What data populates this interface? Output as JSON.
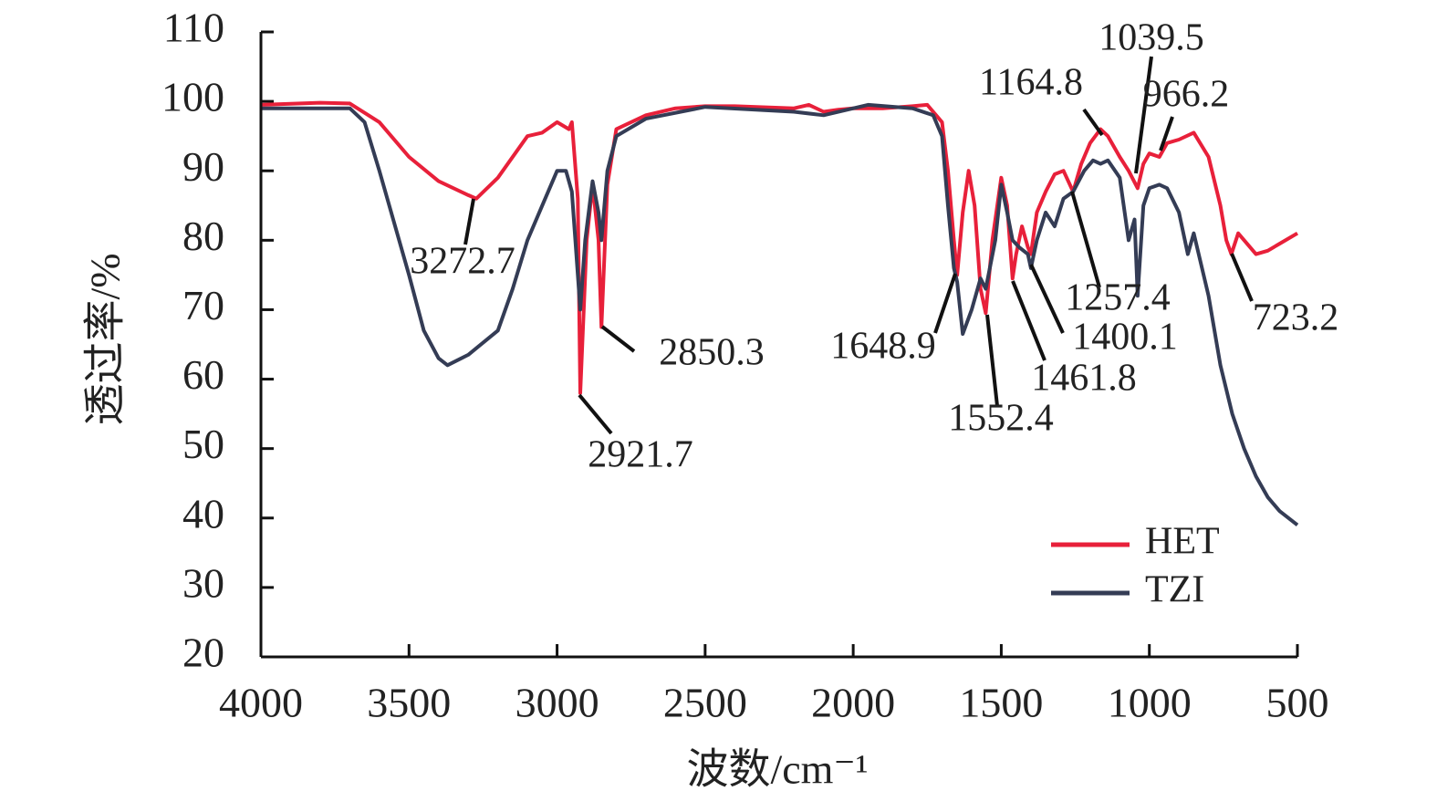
{
  "chart_data": {
    "type": "line",
    "xlabel": "波数/cm⁻¹",
    "ylabel": "透过率/%",
    "xlim": [
      4000,
      500
    ],
    "xticks": [
      4000,
      3500,
      3000,
      2500,
      2000,
      1500,
      1000,
      500
    ],
    "ylim": [
      20,
      110
    ],
    "yticks": [
      20,
      30,
      40,
      50,
      60,
      70,
      80,
      90,
      100,
      110
    ],
    "legend": "lower right",
    "series": [
      {
        "name": "HET",
        "color": "#e8203a",
        "x": [
          4000,
          3800,
          3700,
          3600,
          3500,
          3400,
          3300,
          3272.7,
          3200,
          3100,
          3050,
          3000,
          2960,
          2950,
          2930,
          2921.7,
          2900,
          2880,
          2860,
          2850.3,
          2830,
          2800,
          2700,
          2600,
          2500,
          2400,
          2200,
          2150,
          2100,
          2050,
          2000,
          1900,
          1800,
          1750,
          1700,
          1680,
          1660,
          1648.9,
          1630,
          1610,
          1590,
          1570,
          1552.4,
          1530,
          1500,
          1480,
          1461.8,
          1450,
          1430,
          1410,
          1400.1,
          1380,
          1350,
          1320,
          1290,
          1257.4,
          1230,
          1200,
          1164.8,
          1140,
          1100,
          1070,
          1039.5,
          1020,
          1000,
          966.2,
          940,
          900,
          850,
          800,
          760,
          740,
          723.2,
          700,
          680,
          660,
          640,
          600,
          560,
          500
        ],
        "values": [
          99.5,
          99.8,
          99.7,
          97,
          92,
          88.5,
          86.5,
          86,
          89,
          95,
          95.5,
          97,
          96,
          97,
          86,
          58,
          80,
          88,
          80,
          67.5,
          88,
          96,
          98,
          99,
          99.3,
          99.3,
          99,
          99.5,
          98.5,
          98.8,
          99,
          99,
          99.3,
          99.5,
          97,
          90,
          80,
          75,
          84,
          90,
          85,
          73,
          69.5,
          80,
          89,
          85,
          74.5,
          78,
          82,
          79,
          78,
          84,
          87,
          89.5,
          90,
          87,
          91,
          94,
          96,
          95,
          92,
          90,
          87.5,
          91,
          92.5,
          92,
          94,
          94.5,
          95.5,
          92,
          85,
          80,
          78,
          81,
          80,
          79,
          78,
          78.5,
          79.5,
          81
        ]
      },
      {
        "name": "TZI",
        "color": "#343c55",
        "x": [
          4000,
          3700,
          3650,
          3600,
          3500,
          3450,
          3400,
          3370,
          3300,
          3200,
          3150,
          3100,
          3050,
          3000,
          2970,
          2950,
          2930,
          2921.7,
          2905,
          2880,
          2860,
          2850.3,
          2830,
          2800,
          2700,
          2500,
          2200,
          2100,
          1950,
          1800,
          1730,
          1700,
          1680,
          1660,
          1648.9,
          1630,
          1600,
          1570,
          1552.4,
          1520,
          1500,
          1480,
          1461.8,
          1440,
          1410,
          1400.1,
          1380,
          1350,
          1320,
          1290,
          1257.4,
          1220,
          1190,
          1164.8,
          1140,
          1100,
          1070,
          1050,
          1039.5,
          1020,
          1000,
          966.2,
          940,
          900,
          870,
          850,
          800,
          760,
          720,
          680,
          640,
          600,
          560,
          500
        ],
        "values": [
          99,
          99,
          97,
          90,
          75,
          67,
          63,
          62,
          63.5,
          67,
          73,
          80,
          85,
          90,
          90,
          87,
          75,
          70,
          80,
          88.5,
          84,
          80,
          90,
          95,
          97.5,
          99.2,
          98.5,
          98,
          99.5,
          99,
          98,
          95,
          85,
          76,
          74,
          66.5,
          70,
          74.5,
          73,
          80,
          88,
          84,
          80,
          79,
          78,
          76,
          80,
          84,
          82,
          86,
          87,
          90,
          91.5,
          91,
          91.5,
          89,
          80,
          83,
          72,
          85,
          87.5,
          88,
          87.5,
          84,
          78,
          81,
          72,
          62,
          55,
          50,
          46,
          43,
          41,
          39
        ]
      }
    ],
    "annotations": [
      3272.7,
      2921.7,
      2850.3,
      1648.9,
      1552.4,
      1461.8,
      1400.1,
      1257.4,
      1164.8,
      1039.5,
      966.2,
      723.2
    ]
  }
}
